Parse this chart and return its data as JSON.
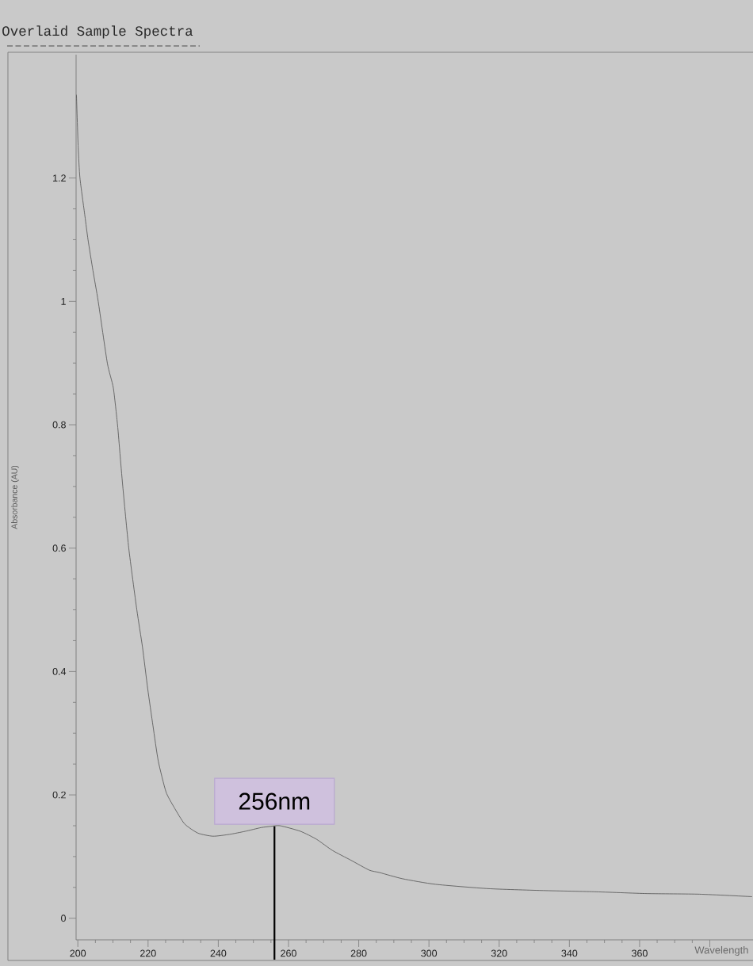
{
  "chart_data": {
    "type": "line",
    "title": "Overlaid Sample Spectra",
    "xlabel": "Wavelength",
    "ylabel": "Absorbance (AU)",
    "x": [
      199.6,
      200.1,
      200.6,
      202,
      202.9,
      204.3,
      205.8,
      208.4,
      210.1,
      211.3,
      212,
      212.8,
      214.5,
      216.8,
      218.4,
      219.9,
      221.4,
      222.9,
      225.1,
      227.4,
      230.4,
      234.2,
      238.5,
      243.2,
      247.7,
      252.2,
      255,
      257.6,
      263.4,
      268,
      272.5,
      277.8,
      283,
      286,
      292.5,
      301.9,
      316.9,
      332,
      347,
      362.1,
      377.1,
      392
    ],
    "series": [
      {
        "color": "#505050",
        "values": [
          1.335,
          1.25,
          1.2,
          1.139,
          1.1,
          1.05,
          1.0,
          0.9,
          0.86,
          0.8,
          0.753,
          0.7,
          0.6,
          0.5,
          0.44,
          0.372,
          0.312,
          0.255,
          0.205,
          0.18,
          0.153,
          0.138,
          0.133,
          0.136,
          0.141,
          0.147,
          0.149,
          0.15,
          0.141,
          0.128,
          0.11,
          0.094,
          0.078,
          0.074,
          0.064,
          0.055,
          0.048,
          0.045,
          0.043,
          0.04,
          0.039,
          0.035
        ]
      }
    ],
    "xlim": [
      199.5,
      392.3
    ],
    "ylim": [
      -0.035,
      1.4
    ],
    "xticks": [
      200,
      220,
      240,
      260,
      280,
      300,
      320,
      340,
      360,
      {
        "value": 380,
        "label": null
      }
    ],
    "yticks": [
      0,
      0.2,
      0.4,
      0.6,
      0.8,
      1,
      1.2
    ],
    "annotations": [
      {
        "text": "256nm",
        "x": 256,
        "y": 0.149
      }
    ],
    "line_style": "solid"
  }
}
